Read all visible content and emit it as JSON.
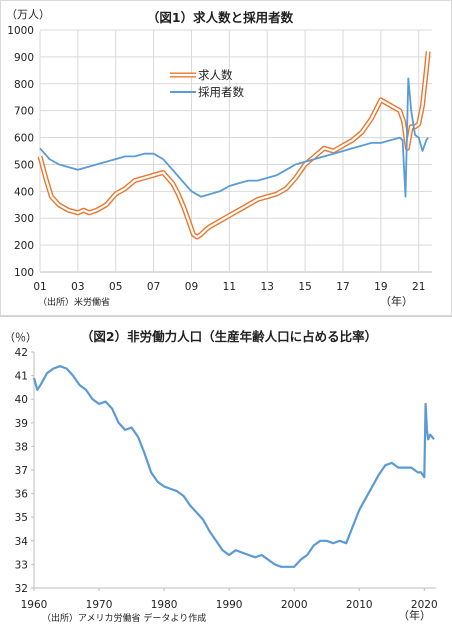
{
  "chart_data": [
    {
      "type": "line",
      "title": "（図1）求人数と採用者数",
      "ylabel": "（万人）",
      "xlabel": "（年）",
      "source": "（出所）米労働省",
      "ylim": [
        100,
        1000
      ],
      "yticks": [
        100,
        200,
        300,
        400,
        500,
        600,
        700,
        800,
        900,
        1000
      ],
      "xlim": [
        2001.0,
        2021.7
      ],
      "xticks": [
        2001,
        2003,
        2005,
        2007,
        2009,
        2011,
        2013,
        2015,
        2017,
        2019,
        2021
      ],
      "xtick_labels": [
        "01",
        "03",
        "05",
        "07",
        "09",
        "11",
        "13",
        "15",
        "17",
        "19",
        "21"
      ],
      "grid": true,
      "legend_position": "upper-center",
      "series": [
        {
          "name": "求人数",
          "color": "#e8772e",
          "style": "double-outline",
          "x": [
            2001.0,
            2001.3,
            2001.6,
            2002.0,
            2002.5,
            2003.0,
            2003.3,
            2003.6,
            2004.0,
            2004.5,
            2005.0,
            2005.5,
            2006.0,
            2006.5,
            2007.0,
            2007.5,
            2008.0,
            2008.3,
            2008.6,
            2008.9,
            2009.1,
            2009.3,
            2009.5,
            2009.8,
            2010.0,
            2010.5,
            2011.0,
            2011.5,
            2012.0,
            2012.5,
            2013.0,
            2013.5,
            2014.0,
            2014.5,
            2015.0,
            2015.5,
            2016.0,
            2016.5,
            2017.0,
            2017.5,
            2018.0,
            2018.5,
            2019.0,
            2019.5,
            2020.0,
            2020.2,
            2020.4,
            2020.6,
            2020.8,
            2021.0,
            2021.2,
            2021.4,
            2021.5
          ],
          "values": [
            530,
            450,
            380,
            350,
            330,
            320,
            330,
            320,
            330,
            350,
            390,
            410,
            440,
            450,
            460,
            470,
            430,
            390,
            340,
            280,
            240,
            230,
            240,
            260,
            270,
            290,
            310,
            330,
            350,
            370,
            380,
            390,
            410,
            450,
            500,
            530,
            560,
            550,
            570,
            590,
            620,
            670,
            740,
            720,
            700,
            660,
            560,
            640,
            640,
            650,
            720,
            850,
            920
          ]
        },
        {
          "name": "採用者数",
          "color": "#5b9bd5",
          "style": "solid",
          "x": [
            2001.0,
            2001.5,
            2002.0,
            2002.5,
            2003.0,
            2003.5,
            2004.0,
            2004.5,
            2005.0,
            2005.5,
            2006.0,
            2006.5,
            2007.0,
            2007.5,
            2008.0,
            2008.5,
            2009.0,
            2009.5,
            2010.0,
            2010.5,
            2011.0,
            2011.5,
            2012.0,
            2012.5,
            2013.0,
            2013.5,
            2014.0,
            2014.5,
            2015.0,
            2015.5,
            2016.0,
            2016.5,
            2017.0,
            2017.5,
            2018.0,
            2018.5,
            2019.0,
            2019.5,
            2020.0,
            2020.15,
            2020.3,
            2020.45,
            2020.6,
            2020.8,
            2021.0,
            2021.2,
            2021.4,
            2021.5
          ],
          "values": [
            560,
            520,
            500,
            490,
            480,
            490,
            500,
            510,
            520,
            530,
            530,
            540,
            540,
            520,
            480,
            440,
            400,
            380,
            390,
            400,
            420,
            430,
            440,
            440,
            450,
            460,
            480,
            500,
            510,
            520,
            530,
            540,
            550,
            560,
            570,
            580,
            580,
            590,
            600,
            590,
            380,
            820,
            700,
            610,
            600,
            550,
            590,
            600
          ]
        }
      ]
    },
    {
      "type": "line",
      "title": "（図2）非労働力人口（生産年齢人口に占める比率）",
      "ylabel": "（％）",
      "xlabel": "（年）",
      "source": "（出所）アメリカ労働省 データより作成",
      "ylim": [
        32,
        42
      ],
      "yticks": [
        32,
        33,
        34,
        35,
        36,
        37,
        38,
        39,
        40,
        41,
        42
      ],
      "xlim": [
        1960,
        2021.8
      ],
      "xticks": [
        1960,
        1970,
        1980,
        1990,
        2000,
        2010,
        2020
      ],
      "grid": false,
      "series": [
        {
          "name": "",
          "color": "#5b9bd5",
          "x": [
            1960,
            1960.5,
            1961,
            1962,
            1963,
            1964,
            1965,
            1966,
            1967,
            1968,
            1969,
            1970,
            1971,
            1972,
            1973,
            1974,
            1975,
            1976,
            1977,
            1978,
            1979,
            1980,
            1981,
            1982,
            1983,
            1984,
            1985,
            1986,
            1987,
            1988,
            1989,
            1990,
            1991,
            1992,
            1993,
            1994,
            1995,
            1996,
            1997,
            1998,
            1999,
            2000,
            2001,
            2002,
            2003,
            2004,
            2005,
            2006,
            2007,
            2008,
            2009,
            2010,
            2011,
            2012,
            2013,
            2014,
            2015,
            2016,
            2017,
            2018,
            2019,
            2019.5,
            2020.0,
            2020.2,
            2020.4,
            2020.6,
            2020.9,
            2021.2,
            2021.5
          ],
          "values": [
            40.9,
            40.4,
            40.6,
            41.1,
            41.3,
            41.4,
            41.3,
            41.0,
            40.6,
            40.4,
            40.0,
            39.8,
            39.9,
            39.6,
            39.0,
            38.7,
            38.8,
            38.4,
            37.7,
            36.9,
            36.5,
            36.3,
            36.2,
            36.1,
            35.9,
            35.5,
            35.2,
            34.9,
            34.4,
            34.0,
            33.6,
            33.4,
            33.6,
            33.5,
            33.4,
            33.3,
            33.4,
            33.2,
            33.0,
            32.9,
            32.9,
            32.9,
            33.2,
            33.4,
            33.8,
            34.0,
            34.0,
            33.9,
            34.0,
            33.9,
            34.6,
            35.3,
            35.8,
            36.3,
            36.8,
            37.2,
            37.3,
            37.1,
            37.1,
            37.1,
            36.9,
            36.9,
            36.7,
            39.8,
            38.7,
            38.3,
            38.5,
            38.4,
            38.3
          ]
        }
      ]
    }
  ]
}
